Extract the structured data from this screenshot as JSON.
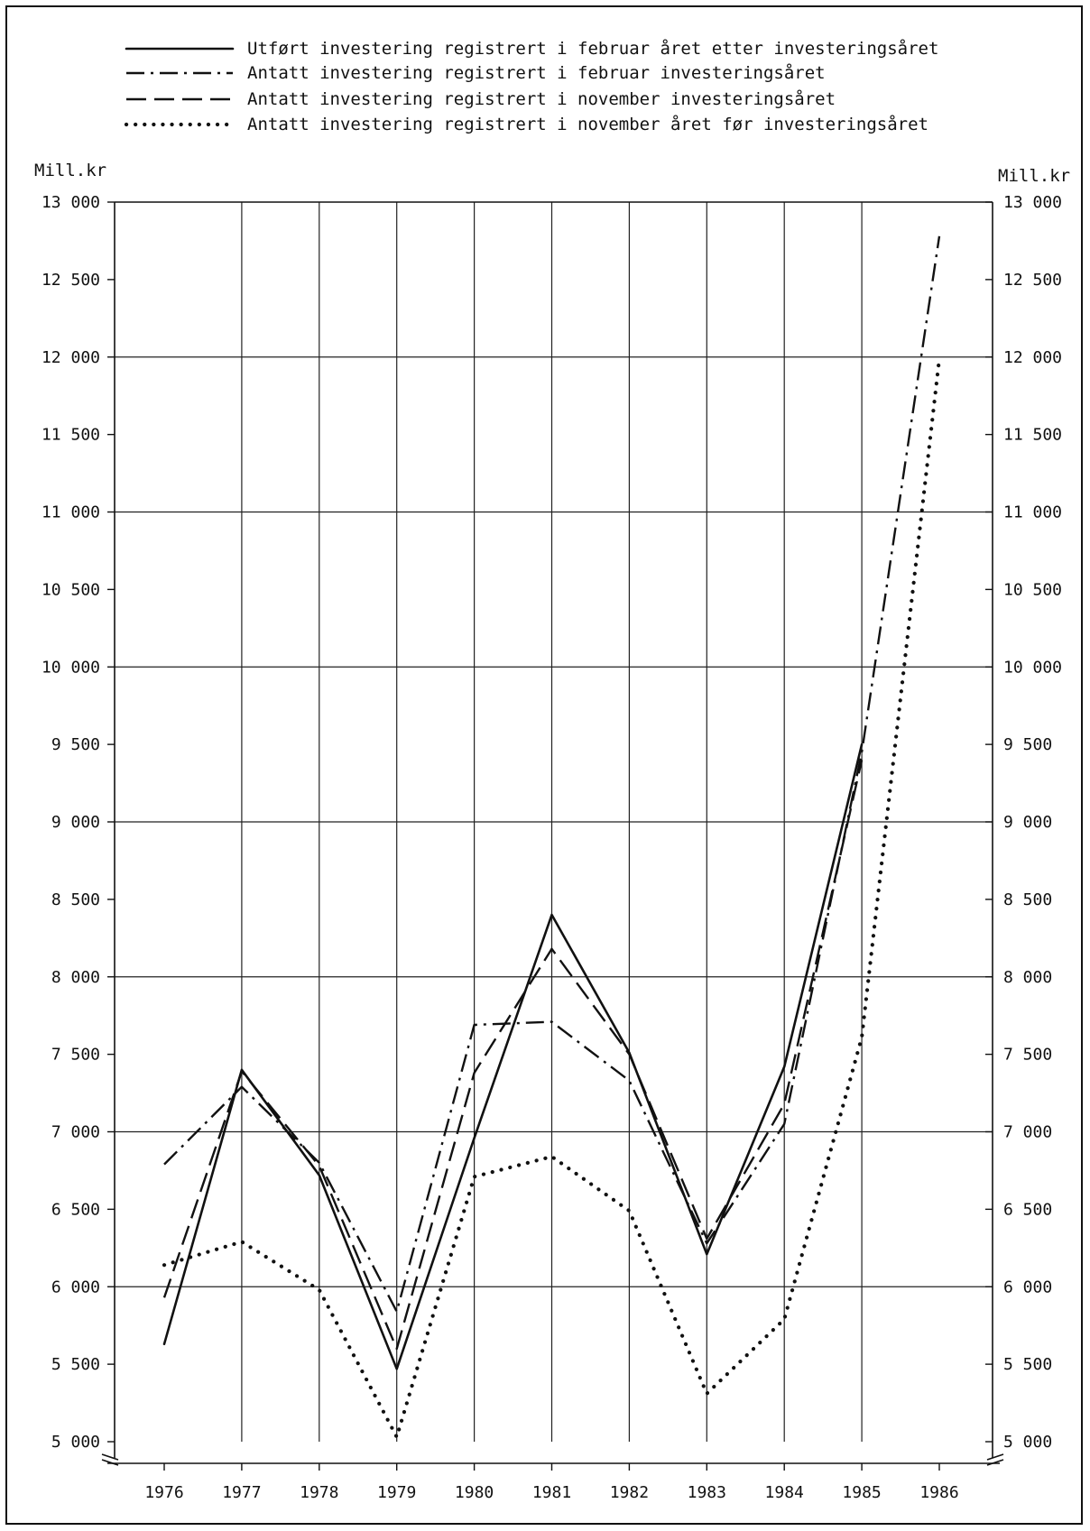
{
  "chart_data": {
    "type": "line",
    "title": "",
    "xlabel": "",
    "ylabel_left": "Mill.kr",
    "ylabel_right": "Mill.kr",
    "x": [
      1976,
      1977,
      1978,
      1979,
      1980,
      1981,
      1982,
      1983,
      1984,
      1985,
      1986
    ],
    "x_tick_labels": [
      "1976",
      "1977",
      "1978",
      "1979",
      "1980",
      "1981",
      "1982",
      "1983",
      "1984",
      "1985",
      "1986"
    ],
    "ylim": [
      5000,
      13000
    ],
    "y_ticks": [
      5000,
      5500,
      6000,
      6500,
      7000,
      7500,
      8000,
      8500,
      9000,
      9500,
      10000,
      10500,
      11000,
      11500,
      12000,
      12500,
      13000
    ],
    "y_tick_labels": [
      "5 000",
      "5 500",
      "6 000",
      "6 500",
      "7 000",
      "7 500",
      "8 000",
      "8 500",
      "9 000",
      "9 500",
      "10 000",
      "10 500",
      "11 000",
      "11 500",
      "12 000",
      "12 500",
      "13 000"
    ],
    "grid": {
      "horizontal_every": 1000,
      "vertical": true
    },
    "legend_position": "top",
    "axis_break": "bottom",
    "series": [
      {
        "name": "Utført investering registrert i februar året etter investeringsåret",
        "style": "solid",
        "values": [
          5630,
          7400,
          6720,
          5470,
          6960,
          8400,
          7510,
          6210,
          7420,
          9500,
          null
        ]
      },
      {
        "name": "Antatt investering registrert i februar investeringsåret",
        "style": "dash-dot",
        "values": [
          6790,
          7290,
          6800,
          5840,
          7690,
          7710,
          7330,
          6280,
          7050,
          9450,
          12780
        ]
      },
      {
        "name": "Antatt investering registrert i november investeringsåret",
        "style": "dashed",
        "values": [
          5930,
          7390,
          6780,
          5600,
          7380,
          8180,
          7500,
          6310,
          7180,
          9400,
          null
        ]
      },
      {
        "name": "Antatt investering registrert i november året før investeringsåret",
        "style": "dotted",
        "values": [
          6140,
          6290,
          5980,
          5030,
          6710,
          6840,
          6490,
          5310,
          5790,
          7610,
          11990
        ]
      }
    ]
  }
}
